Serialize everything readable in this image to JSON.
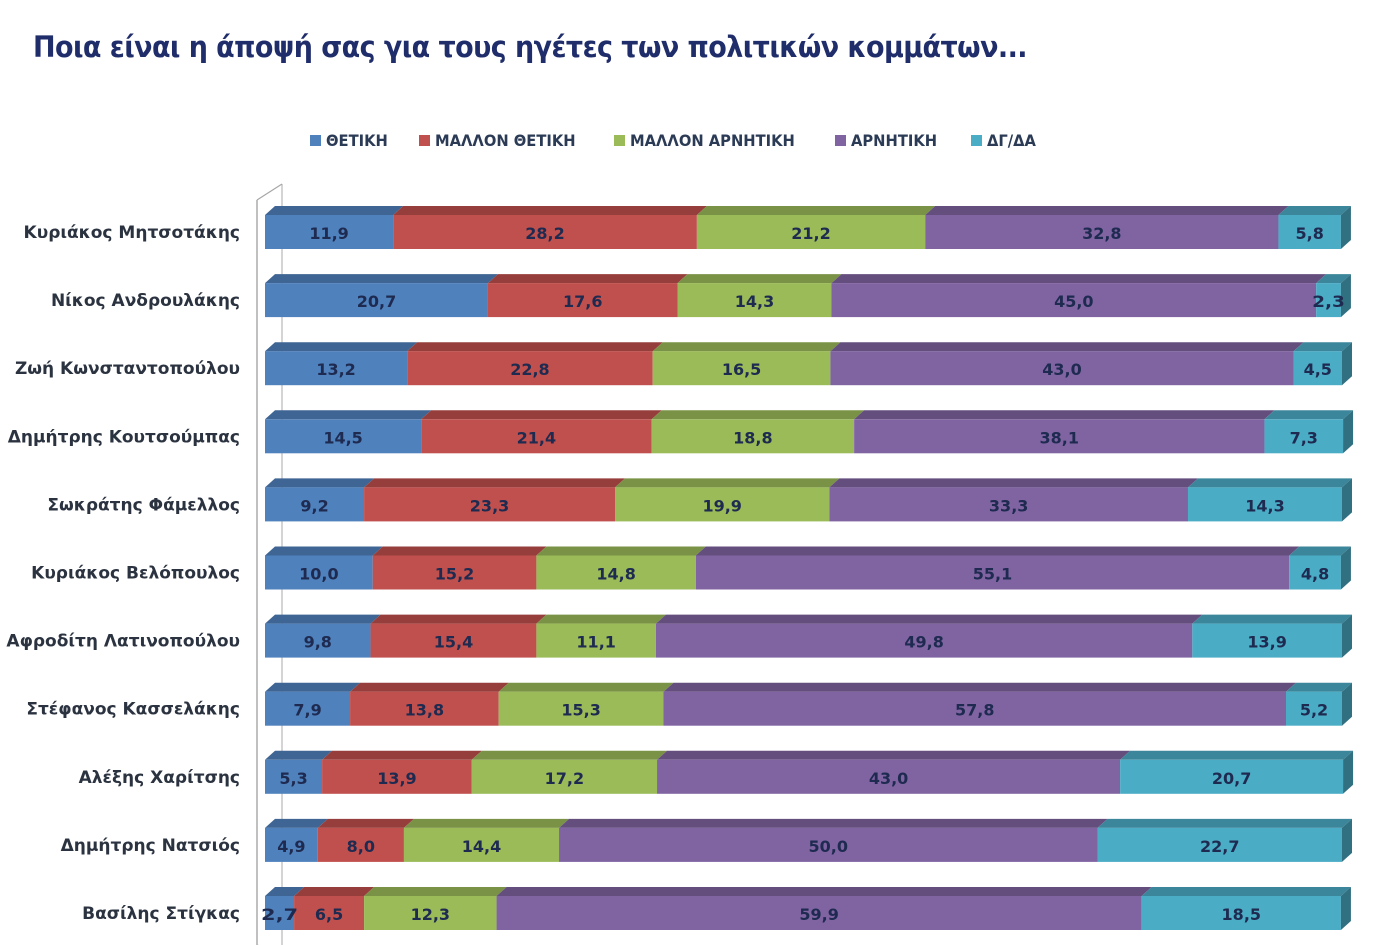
{
  "title": "Ποια είναι η άποψή σας για τους ηγέτες των πολιτικών κομμάτων...",
  "chart_data": {
    "type": "bar",
    "orientation": "horizontal",
    "stacked": true,
    "style": "3d-stacked-100",
    "title": "Ποια είναι η άποψή σας για τους ηγέτες των πολιτικών κομμάτων...",
    "xlabel": "",
    "ylabel": "",
    "xlim": [
      0,
      100
    ],
    "grid": false,
    "legend_position": "top",
    "categories": [
      "Κυριάκος Μητσοτάκης",
      "Νίκος Ανδρουλάκης",
      "Ζωή Κωνσταντοπούλου",
      "Δημήτρης Κουτσούμπας",
      "Σωκράτης Φάμελλος",
      "Κυριάκος Βελόπουλος",
      "Αφροδίτη Λατινοπούλου",
      "Στέφανος Κασσελάκης",
      "Αλέξης Χαρίτσης",
      "Δημήτρης Νατσιός",
      "Βασίλης Στίγκας"
    ],
    "series": [
      {
        "name": "ΘΕΤΙΚΗ",
        "color": "#4f81bd",
        "values": [
          11.9,
          20.7,
          13.2,
          14.5,
          9.2,
          10.0,
          9.8,
          7.9,
          5.3,
          4.9,
          2.7
        ],
        "labels": [
          "11,9",
          "20,7",
          "13,2",
          "14,5",
          "9,2",
          "10,0",
          "9,8",
          "7,9",
          "5,3",
          "4,9",
          "2,7"
        ]
      },
      {
        "name": "ΜΑΛΛΟΝ ΘΕΤΙΚΗ",
        "color": "#c0504d",
        "values": [
          28.2,
          17.6,
          22.8,
          21.4,
          23.3,
          15.2,
          15.4,
          13.8,
          13.9,
          8.0,
          6.5
        ],
        "labels": [
          "28,2",
          "17,6",
          "22,8",
          "21,4",
          "23,3",
          "15,2",
          "15,4",
          "13,8",
          "13,9",
          "8,0",
          "6,5"
        ]
      },
      {
        "name": "ΜΑΛΛΟΝ ΑΡΝΗΤΙΚΗ",
        "color": "#9bbb59",
        "values": [
          21.2,
          14.3,
          16.5,
          18.8,
          19.9,
          14.8,
          11.1,
          15.3,
          17.2,
          14.4,
          12.3
        ],
        "labels": [
          "21,2",
          "14,3",
          "16,5",
          "18,8",
          "19,9",
          "14,8",
          "11,1",
          "15,3",
          "17,2",
          "14,4",
          "12,3"
        ]
      },
      {
        "name": "ΑΡΝΗΤΙΚΗ",
        "color": "#8064a2",
        "values": [
          32.8,
          45.0,
          43.0,
          38.1,
          33.3,
          55.1,
          49.8,
          57.8,
          43.0,
          50.0,
          59.9
        ],
        "labels": [
          "32,8",
          "45,0",
          "43,0",
          "38,1",
          "33,3",
          "55,1",
          "49,8",
          "57,8",
          "43,0",
          "50,0",
          "59,9"
        ]
      },
      {
        "name": "ΔΓ/ΔΑ",
        "color": "#4bacc6",
        "values": [
          5.8,
          2.3,
          4.5,
          7.3,
          14.3,
          4.8,
          13.9,
          5.2,
          20.7,
          22.7,
          18.5
        ],
        "labels": [
          "5,8",
          "2,3",
          "4,5",
          "7,3",
          "14,3",
          "4,8",
          "13,9",
          "5,2",
          "20,7",
          "22,7",
          "18,5"
        ]
      }
    ]
  }
}
